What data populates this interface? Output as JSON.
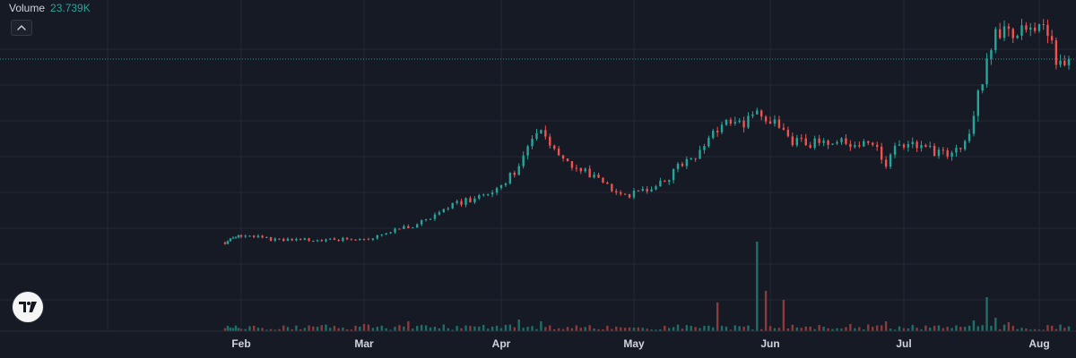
{
  "legend": {
    "label": "Volume",
    "value": "23.739K"
  },
  "colors": {
    "background": "#161a25",
    "grid": "#242836",
    "up": "#26a69a",
    "down": "#ef5350",
    "up_volume": "#1e6f68",
    "down_volume": "#8d3a3c",
    "price_line": "#26a69a",
    "axis_text": "#d1d4dc"
  },
  "icons": {
    "collapse": "chevron-up-icon",
    "logo": "tradingview-logo-icon"
  },
  "chart_data": {
    "type": "candlestick",
    "title": "",
    "x_axis": {
      "labels": [
        "Feb",
        "Mar",
        "Apr",
        "May",
        "Jun",
        "Jul",
        "Aug"
      ],
      "range": [
        "2024-01-25",
        "2024-08-08"
      ]
    },
    "y_axis": {
      "visible": false,
      "range": [
        0,
        100
      ]
    },
    "grid": true,
    "last_price_line": true,
    "legend_placement": "top-left",
    "price_series": {
      "name": "",
      "points": [
        [
          "2024-01-26",
          10
        ],
        [
          "2024-01-30",
          12.5
        ],
        [
          "2024-02-04",
          12.5
        ],
        [
          "2024-02-09",
          11
        ],
        [
          "2024-02-19",
          11
        ],
        [
          "2024-02-25",
          11.3
        ],
        [
          "2024-03-02",
          11.5
        ],
        [
          "2024-03-07",
          14.5
        ],
        [
          "2024-03-12",
          16.5
        ],
        [
          "2024-03-16",
          20
        ],
        [
          "2024-03-20",
          24
        ],
        [
          "2024-03-24",
          26
        ],
        [
          "2024-03-29",
          28.5
        ],
        [
          "2024-04-02",
          34
        ],
        [
          "2024-04-05",
          39
        ],
        [
          "2024-04-07",
          48
        ],
        [
          "2024-04-09",
          52
        ],
        [
          "2024-04-11",
          51
        ],
        [
          "2024-04-15",
          41
        ],
        [
          "2024-04-18",
          38
        ],
        [
          "2024-04-22",
          36
        ],
        [
          "2024-04-26",
          31
        ],
        [
          "2024-04-30",
          28.5
        ],
        [
          "2024-05-04",
          31
        ],
        [
          "2024-05-08",
          33
        ],
        [
          "2024-05-11",
          39
        ],
        [
          "2024-05-15",
          43.5
        ],
        [
          "2024-05-18",
          50
        ],
        [
          "2024-05-21",
          56
        ],
        [
          "2024-05-24",
          58
        ],
        [
          "2024-05-26",
          55.5
        ],
        [
          "2024-05-29",
          60
        ],
        [
          "2024-06-01",
          58
        ],
        [
          "2024-06-03",
          55
        ],
        [
          "2024-06-05",
          49
        ],
        [
          "2024-06-10",
          48
        ],
        [
          "2024-06-15",
          50
        ],
        [
          "2024-06-20",
          48
        ],
        [
          "2024-06-25",
          47
        ],
        [
          "2024-06-27",
          38
        ],
        [
          "2024-06-29",
          47
        ],
        [
          "2024-07-04",
          47
        ],
        [
          "2024-07-10",
          44
        ],
        [
          "2024-07-13",
          45
        ],
        [
          "2024-07-16",
          52
        ],
        [
          "2024-07-18",
          68
        ],
        [
          "2024-07-19",
          72
        ],
        [
          "2024-07-20",
          78
        ],
        [
          "2024-07-22",
          90
        ],
        [
          "2024-07-24",
          93
        ],
        [
          "2024-07-26",
          89
        ],
        [
          "2024-07-28",
          92
        ],
        [
          "2024-07-31",
          94
        ],
        [
          "2024-08-03",
          89
        ],
        [
          "2024-08-05",
          81
        ],
        [
          "2024-08-07",
          80
        ],
        [
          "2024-08-08",
          82
        ]
      ]
    },
    "volume_series": {
      "name": "Volume",
      "last_value": "23.739K",
      "spikes": [
        [
          "2024-03-01",
          8
        ],
        [
          "2024-03-11",
          11
        ],
        [
          "2024-04-05",
          13
        ],
        [
          "2024-04-10",
          11
        ],
        [
          "2024-05-20",
          32
        ],
        [
          "2024-05-29",
          100
        ],
        [
          "2024-05-31",
          45
        ],
        [
          "2024-06-04",
          35
        ],
        [
          "2024-06-19",
          8
        ],
        [
          "2024-06-27",
          11
        ],
        [
          "2024-07-17",
          12
        ],
        [
          "2024-07-20",
          38
        ],
        [
          "2024-07-22",
          15
        ],
        [
          "2024-07-25",
          10
        ]
      ]
    }
  }
}
